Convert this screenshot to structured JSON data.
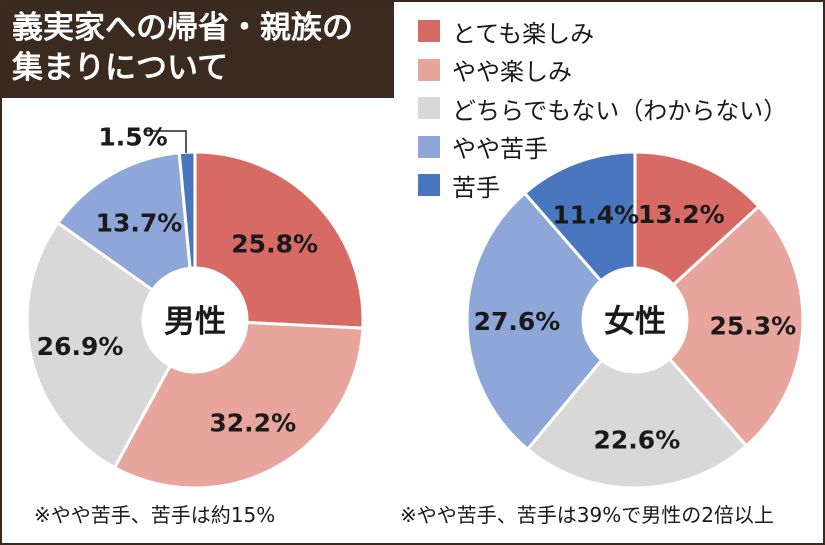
{
  "title": {
    "line1": "義実家への帰省・親族の",
    "line2": "集まりについて"
  },
  "legend": [
    {
      "label": "とても楽しみ",
      "color": "#d86a66"
    },
    {
      "label": "やや楽しみ",
      "color": "#e8a59d"
    },
    {
      "label": "どちらでもない（わからない）",
      "color": "#d8d8d8"
    },
    {
      "label": "やや苦手",
      "color": "#8ea6d8"
    },
    {
      "label": "苦手",
      "color": "#4a76bf"
    }
  ],
  "chart_data": [
    {
      "type": "pie",
      "center_label": "男性",
      "categories": [
        "とても楽しみ",
        "やや楽しみ",
        "どちらでもない（わからない）",
        "やや苦手",
        "苦手"
      ],
      "values": [
        25.8,
        32.2,
        26.9,
        13.7,
        1.5
      ],
      "labels": [
        "25.8%",
        "32.2%",
        "26.9%",
        "13.7%",
        "1.5%"
      ],
      "colors": [
        "#d86a66",
        "#e8a59d",
        "#d8d8d8",
        "#8ea6d8",
        "#4a76bf"
      ]
    },
    {
      "type": "pie",
      "center_label": "女性",
      "categories": [
        "とても楽しみ",
        "やや楽しみ",
        "どちらでもない（わからない）",
        "やや苦手",
        "苦手"
      ],
      "values": [
        13.2,
        25.3,
        22.6,
        27.6,
        11.4
      ],
      "labels": [
        "13.2%",
        "25.3%",
        "22.6%",
        "27.6%",
        "11.4%"
      ],
      "colors": [
        "#d86a66",
        "#e8a59d",
        "#d8d8d8",
        "#8ea6d8",
        "#4a76bf"
      ]
    }
  ],
  "notes": {
    "male": "※やや苦手、苦手は約15%",
    "female": "※やや苦手、苦手は39%で男性の2倍以上"
  }
}
